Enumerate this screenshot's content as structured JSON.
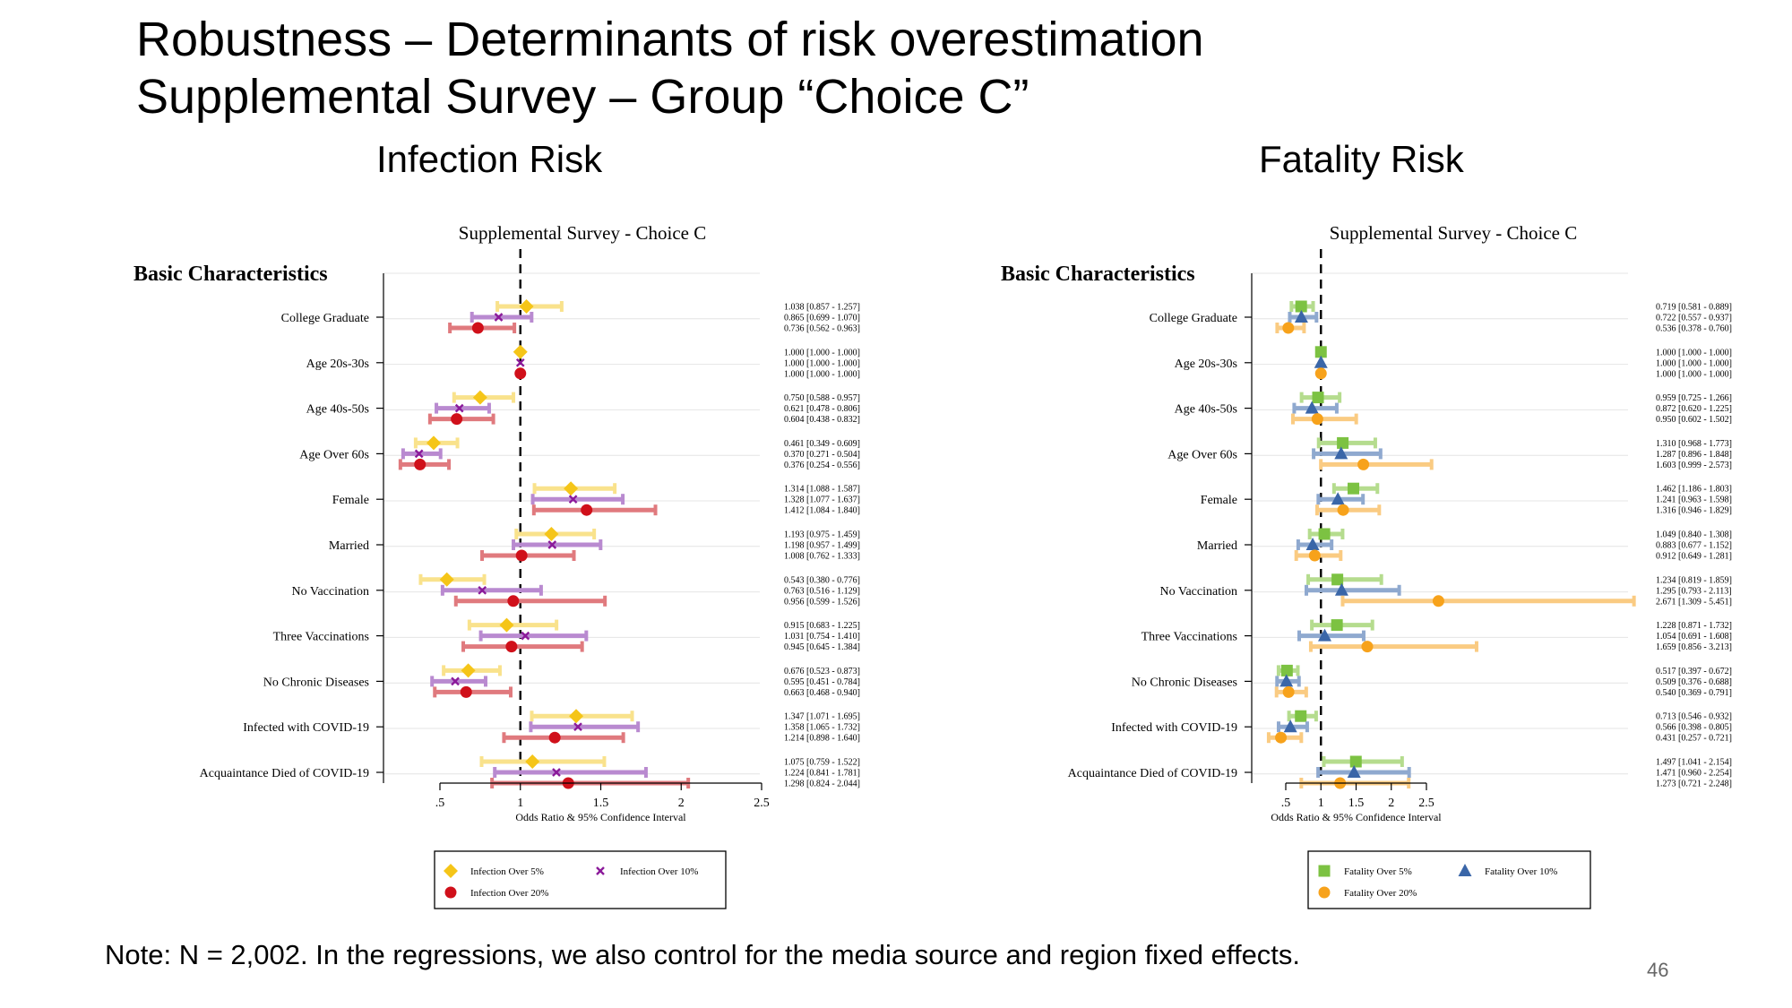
{
  "slide": {
    "title_line1": "Robustness – Determinants of risk overestimation",
    "title_line2": "Supplemental Survey – Group “Choice C”",
    "note": "Note: N = 2,002. In the regressions, we also control for the media source and region fixed effects.",
    "page_number": "46"
  },
  "chart_data": [
    {
      "type": "forest",
      "panel_title": "Infection Risk",
      "title": "Supplemental Survey - Choice C",
      "section_label": "Basic Characteristics",
      "xlabel": "Odds Ratio & 95% Confidence Interval",
      "xlim": [
        0.5,
        2.5
      ],
      "xticks": [
        0.5,
        1,
        1.5,
        2,
        2.5
      ],
      "xtick_labels": [
        ".5",
        "1",
        "1.5",
        "2",
        "2.5"
      ],
      "reference_line": 1,
      "legend_placement": "bottom",
      "categories": [
        "College Graduate",
        "Age 20s-30s",
        "Age 40s-50s",
        "Age Over 60s",
        "Female",
        "Married",
        "No Vaccination",
        "Three Vaccinations",
        "No Chronic Diseases",
        "Infected with COVID-19",
        "Acquaintance Died of COVID-19"
      ],
      "series": [
        {
          "name": "Infection Over 5%",
          "marker": "diamond",
          "color": "#F5C518",
          "ci_color": "#F9E28C",
          "values": [
            [
              1.038,
              0.857,
              1.257
            ],
            [
              1.0,
              1.0,
              1.0
            ],
            [
              0.75,
              0.588,
              0.957
            ],
            [
              0.461,
              0.349,
              0.609
            ],
            [
              1.314,
              1.088,
              1.587
            ],
            [
              1.193,
              0.975,
              1.459
            ],
            [
              0.543,
              0.38,
              0.776
            ],
            [
              0.915,
              0.683,
              1.225
            ],
            [
              0.676,
              0.523,
              0.873
            ],
            [
              1.347,
              1.071,
              1.695
            ],
            [
              1.075,
              0.759,
              1.522
            ]
          ],
          "labels": [
            "1.038 [0.857 - 1.257]",
            "1.000 [1.000 - 1.000]",
            "0.750 [0.588 - 0.957]",
            "0.461 [0.349 - 0.609]",
            "1.314 [1.088 - 1.587]",
            "1.193 [0.975 - 1.459]",
            "0.543 [0.380 - 0.776]",
            "0.915 [0.683 - 1.225]",
            "0.676 [0.523 - 0.873]",
            "1.347 [1.071 - 1.695]",
            "1.075 [0.759 - 1.522]"
          ]
        },
        {
          "name": "Infection Over 10%",
          "marker": "x",
          "color": "#8B1A9A",
          "ci_color": "#B98AD0",
          "values": [
            [
              0.865,
              0.699,
              1.07
            ],
            [
              1.0,
              1.0,
              1.0
            ],
            [
              0.621,
              0.478,
              0.806
            ],
            [
              0.37,
              0.271,
              0.504
            ],
            [
              1.328,
              1.077,
              1.637
            ],
            [
              1.198,
              0.957,
              1.499
            ],
            [
              0.763,
              0.516,
              1.129
            ],
            [
              1.031,
              0.754,
              1.41
            ],
            [
              0.595,
              0.451,
              0.784
            ],
            [
              1.358,
              1.065,
              1.732
            ],
            [
              1.224,
              0.841,
              1.781
            ]
          ],
          "labels": [
            "0.865 [0.699 - 1.070]",
            "1.000 [1.000 - 1.000]",
            "0.621 [0.478 - 0.806]",
            "0.370 [0.271 - 0.504]",
            "1.328 [1.077 - 1.637]",
            "1.198 [0.957 - 1.499]",
            "0.763 [0.516 - 1.129]",
            "1.031 [0.754 - 1.410]",
            "0.595 [0.451 - 0.784]",
            "1.358 [1.065 - 1.732]",
            "1.224 [0.841 - 1.781]"
          ]
        },
        {
          "name": "Infection Over 20%",
          "marker": "circle",
          "color": "#D0101A",
          "ci_color": "#E07A7E",
          "values": [
            [
              0.736,
              0.562,
              0.963
            ],
            [
              1.0,
              1.0,
              1.0
            ],
            [
              0.604,
              0.438,
              0.832
            ],
            [
              0.376,
              0.254,
              0.556
            ],
            [
              1.412,
              1.084,
              1.84
            ],
            [
              1.008,
              0.762,
              1.333
            ],
            [
              0.956,
              0.599,
              1.526
            ],
            [
              0.945,
              0.645,
              1.384
            ],
            [
              0.663,
              0.468,
              0.94
            ],
            [
              1.214,
              0.898,
              1.64
            ],
            [
              1.298,
              0.824,
              2.044
            ]
          ],
          "labels": [
            "0.736 [0.562 - 0.963]",
            "1.000 [1.000 - 1.000]",
            "0.604 [0.438 - 0.832]",
            "0.376 [0.254 - 0.556]",
            "1.412 [1.084 - 1.840]",
            "1.008 [0.762 - 1.333]",
            "0.956 [0.599 - 1.526]",
            "0.945 [0.645 - 1.384]",
            "0.663 [0.468 - 0.940]",
            "1.214 [0.898 - 1.640]",
            "1.298 [0.824 - 2.044]"
          ]
        }
      ]
    },
    {
      "type": "forest",
      "panel_title": "Fatality Risk",
      "title": "Supplemental Survey - Choice C",
      "section_label": "Basic Characteristics",
      "xlabel": "Odds Ratio & 95% Confidence Interval",
      "xlim": [
        0.5,
        2.5
      ],
      "xticks": [
        0.5,
        1,
        1.5,
        2,
        2.5
      ],
      "xtick_labels": [
        ".5",
        "1",
        "1.5",
        "2",
        "2.5"
      ],
      "reference_line": 1,
      "legend_placement": "bottom",
      "categories": [
        "College Graduate",
        "Age 20s-30s",
        "Age 40s-50s",
        "Age Over 60s",
        "Female",
        "Married",
        "No Vaccination",
        "Three Vaccinations",
        "No Chronic Diseases",
        "Infected with COVID-19",
        "Acquaintance Died of COVID-19"
      ],
      "series": [
        {
          "name": "Fatality Over 5%",
          "marker": "square",
          "color": "#7CC242",
          "ci_color": "#B5DC8E",
          "values": [
            [
              0.719,
              0.581,
              0.889
            ],
            [
              1.0,
              1.0,
              1.0
            ],
            [
              0.959,
              0.725,
              1.266
            ],
            [
              1.31,
              0.968,
              1.773
            ],
            [
              1.462,
              1.186,
              1.803
            ],
            [
              1.049,
              0.84,
              1.308
            ],
            [
              1.234,
              0.819,
              1.859
            ],
            [
              1.228,
              0.871,
              1.732
            ],
            [
              0.517,
              0.397,
              0.672
            ],
            [
              0.713,
              0.546,
              0.932
            ],
            [
              1.497,
              1.041,
              2.154
            ]
          ],
          "labels": [
            "0.719 [0.581 - 0.889]",
            "1.000 [1.000 - 1.000]",
            "0.959 [0.725 - 1.266]",
            "1.310 [0.968 - 1.773]",
            "1.462 [1.186 - 1.803]",
            "1.049 [0.840 - 1.308]",
            "1.234 [0.819 - 1.859]",
            "1.228 [0.871 - 1.732]",
            "0.517 [0.397 - 0.672]",
            "0.713 [0.546 - 0.932]",
            "1.497 [1.041 - 2.154]"
          ]
        },
        {
          "name": "Fatality Over 10%",
          "marker": "triangle",
          "color": "#3A66A8",
          "ci_color": "#8FA9CF",
          "values": [
            [
              0.722,
              0.557,
              0.937
            ],
            [
              1.0,
              1.0,
              1.0
            ],
            [
              0.872,
              0.62,
              1.225
            ],
            [
              1.287,
              0.896,
              1.848
            ],
            [
              1.241,
              0.963,
              1.598
            ],
            [
              0.883,
              0.677,
              1.152
            ],
            [
              1.295,
              0.793,
              2.113
            ],
            [
              1.054,
              0.691,
              1.608
            ],
            [
              0.509,
              0.376,
              0.688
            ],
            [
              0.566,
              0.398,
              0.805
            ],
            [
              1.471,
              0.96,
              2.254
            ]
          ],
          "labels": [
            "0.722 [0.557 - 0.937]",
            "1.000 [1.000 - 1.000]",
            "0.872 [0.620 - 1.225]",
            "1.287 [0.896 - 1.848]",
            "1.241 [0.963 - 1.598]",
            "0.883 [0.677 - 1.152]",
            "1.295 [0.793 - 2.113]",
            "1.054 [0.691 - 1.608]",
            "0.509 [0.376 - 0.688]",
            "0.566 [0.398 - 0.805]",
            "1.471 [0.960 - 2.254]"
          ]
        },
        {
          "name": "Fatality Over 20%",
          "marker": "circle",
          "color": "#F7A21B",
          "ci_color": "#FACB82",
          "values": [
            [
              0.536,
              0.378,
              0.76
            ],
            [
              1.0,
              1.0,
              1.0
            ],
            [
              0.95,
              0.602,
              1.502
            ],
            [
              1.603,
              0.999,
              2.573
            ],
            [
              1.316,
              0.946,
              1.829
            ],
            [
              0.912,
              0.649,
              1.281
            ],
            [
              2.671,
              1.309,
              5.451
            ],
            [
              1.659,
              0.856,
              3.213
            ],
            [
              0.54,
              0.369,
              0.791
            ],
            [
              0.431,
              0.257,
              0.721
            ],
            [
              1.273,
              0.721,
              2.248
            ]
          ],
          "labels": [
            "0.536 [0.378 - 0.760]",
            "1.000 [1.000 - 1.000]",
            "0.950 [0.602 - 1.502]",
            "1.603 [0.999 - 2.573]",
            "1.316 [0.946 - 1.829]",
            "0.912 [0.649 - 1.281]",
            "2.671 [1.309 - 5.451]",
            "1.659 [0.856 - 3.213]",
            "0.540 [0.369 - 0.791]",
            "0.431 [0.257 - 0.721]",
            "1.273 [0.721 - 2.248]"
          ]
        }
      ]
    }
  ]
}
